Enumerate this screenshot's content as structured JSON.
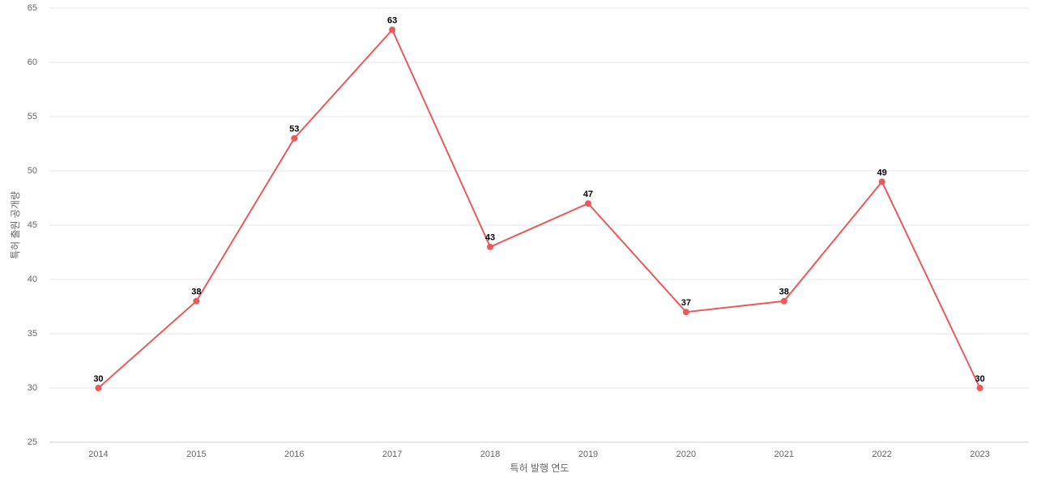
{
  "chart_data": {
    "type": "line",
    "x_label": "특허 발행 연도",
    "y_label": "특허 출원 공개량",
    "categories": [
      "2014",
      "2015",
      "2016",
      "2017",
      "2018",
      "2019",
      "2020",
      "2021",
      "2022",
      "2023"
    ],
    "series": [
      {
        "name": "특허 출원 공개량",
        "color": "#eb5a5a",
        "values": [
          30,
          38,
          53,
          63,
          43,
          47,
          37,
          38,
          49,
          30
        ]
      }
    ],
    "ylim": [
      25,
      65
    ],
    "yticks": [
      25,
      30,
      35,
      40,
      45,
      50,
      55,
      60,
      65
    ],
    "grid": true
  }
}
